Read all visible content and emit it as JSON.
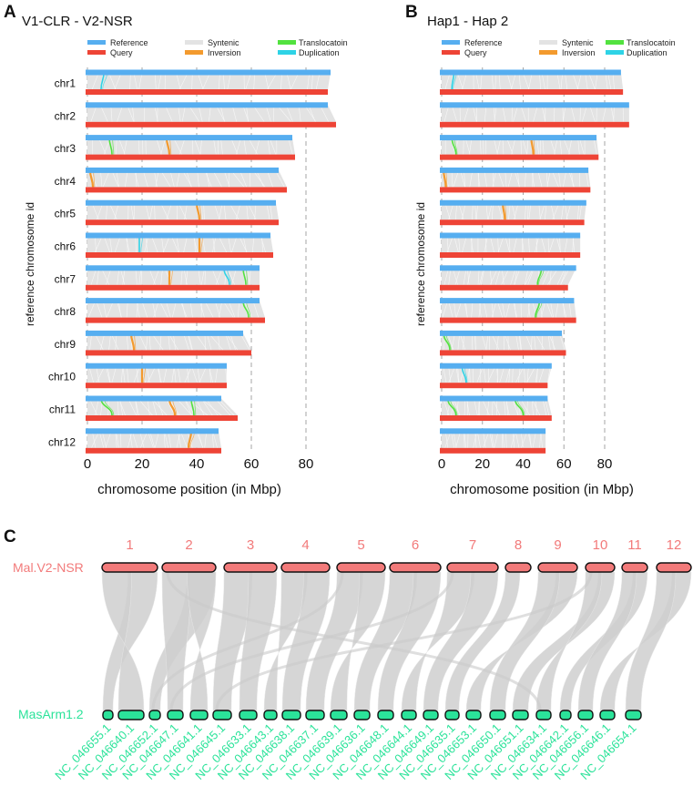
{
  "panel_letters": [
    "A",
    "B",
    "C"
  ],
  "legend": {
    "reference": "Reference",
    "query": "Query",
    "syntenic": "Syntenic",
    "inversion": "Inversion",
    "translocation": "Translocatoin",
    "duplication": "Duplication"
  },
  "colors": {
    "reference": "#56aef0",
    "query": "#ee4436",
    "syntenic": "#e3e3e3",
    "inversion": "#f39a2e",
    "translocation": "#52e23f",
    "duplication": "#2ed3e6",
    "c_top": "#f27a7a",
    "c_bottom": "#2be39a",
    "c_ribbon": "#cfcfcf"
  },
  "chart_data": [
    {
      "type": "bar",
      "panel": "A",
      "title": "V1-CLR - V2-NSR",
      "xlabel": "chromosome position (in Mbp)",
      "ylabel": "reference chromosome id",
      "xlim": [
        0,
        92
      ],
      "xticks": [
        0,
        20,
        40,
        60,
        80
      ],
      "categories": [
        "chr1",
        "chr2",
        "chr3",
        "chr4",
        "chr5",
        "chr6",
        "chr7",
        "chr8",
        "chr9",
        "chr10",
        "chr11",
        "chr12"
      ],
      "series": [
        {
          "name": "Reference",
          "values": [
            89,
            88,
            75,
            70,
            69,
            67,
            63,
            63,
            57,
            51,
            49,
            48
          ]
        },
        {
          "name": "Query",
          "values": [
            88,
            91,
            76,
            73,
            70,
            68,
            63,
            65,
            60,
            51,
            55,
            49
          ]
        }
      ],
      "events": [
        {
          "type": "duplication",
          "chr": "chr1",
          "ref": 6,
          "qry": 5
        },
        {
          "type": "inversion",
          "chr": "chr3",
          "ref": 29,
          "qry": 30
        },
        {
          "type": "translocation",
          "chr": "chr3",
          "ref": 8,
          "qry": 9
        },
        {
          "type": "inversion",
          "chr": "chr4",
          "ref": 1,
          "qry": 2
        },
        {
          "type": "inversion",
          "chr": "chr5",
          "ref": 40,
          "qry": 41
        },
        {
          "type": "duplication",
          "chr": "chr6",
          "ref": 19,
          "qry": 19
        },
        {
          "type": "inversion",
          "chr": "chr6",
          "ref": 41,
          "qry": 41
        },
        {
          "type": "inversion",
          "chr": "chr7",
          "ref": 30,
          "qry": 30
        },
        {
          "type": "duplication",
          "chr": "chr7",
          "ref": 50,
          "qry": 52
        },
        {
          "type": "translocation",
          "chr": "chr7",
          "ref": 57,
          "qry": 58
        },
        {
          "type": "translocation",
          "chr": "chr8",
          "ref": 57,
          "qry": 59
        },
        {
          "type": "inversion",
          "chr": "chr9",
          "ref": 16,
          "qry": 17
        },
        {
          "type": "inversion",
          "chr": "chr10",
          "ref": 20,
          "qry": 20
        },
        {
          "type": "translocation",
          "chr": "chr11",
          "ref": 5,
          "qry": 9
        },
        {
          "type": "inversion",
          "chr": "chr11",
          "ref": 30,
          "qry": 32
        },
        {
          "type": "translocation",
          "chr": "chr11",
          "ref": 38,
          "qry": 39
        },
        {
          "type": "inversion",
          "chr": "chr12",
          "ref": 38,
          "qry": 37
        }
      ]
    },
    {
      "type": "bar",
      "panel": "B",
      "title": "Hap1 - Hap 2",
      "xlabel": "chromosome position (in Mbp)",
      "ylabel": "reference chromosome id",
      "xlim": [
        0,
        92
      ],
      "xticks": [
        0,
        20,
        40,
        60,
        80
      ],
      "categories": [
        "chr1",
        "chr2",
        "chr3",
        "chr4",
        "chr5",
        "chr6",
        "chr7",
        "chr8",
        "chr9",
        "chr10",
        "chr11",
        "chr12"
      ],
      "series": [
        {
          "name": "Reference",
          "values": [
            88,
            92,
            76,
            72,
            71,
            68,
            66,
            65,
            59,
            54,
            52,
            51
          ]
        },
        {
          "name": "Query",
          "values": [
            89,
            92,
            77,
            73,
            70,
            68,
            62,
            66,
            61,
            52,
            54,
            51
          ]
        }
      ],
      "events": [
        {
          "type": "duplication",
          "chr": "chr1",
          "ref": 6,
          "qry": 5
        },
        {
          "type": "translocation",
          "chr": "chr3",
          "ref": 5,
          "qry": 7
        },
        {
          "type": "inversion",
          "chr": "chr3",
          "ref": 44,
          "qry": 45
        },
        {
          "type": "inversion",
          "chr": "chr4",
          "ref": 1,
          "qry": 2
        },
        {
          "type": "inversion",
          "chr": "chr5",
          "ref": 30,
          "qry": 31
        },
        {
          "type": "translocation",
          "chr": "chr7",
          "ref": 49,
          "qry": 47
        },
        {
          "type": "translocation",
          "chr": "chr8",
          "ref": 48,
          "qry": 46
        },
        {
          "type": "translocation",
          "chr": "chr9",
          "ref": 1,
          "qry": 4
        },
        {
          "type": "duplication",
          "chr": "chr10",
          "ref": 10,
          "qry": 12
        },
        {
          "type": "translocation",
          "chr": "chr11",
          "ref": 3,
          "qry": 7
        },
        {
          "type": "translocation",
          "chr": "chr11",
          "ref": 36,
          "qry": 40
        }
      ]
    },
    {
      "type": "diagram",
      "panel": "C",
      "top_label": "Mal.V2-NSR",
      "bottom_label": "MasArm1.2",
      "top_chromosomes": [
        "1",
        "2",
        "3",
        "4",
        "5",
        "6",
        "7",
        "8",
        "9",
        "10",
        "11",
        "12"
      ],
      "bottom_chromosomes": [
        "NC_046655.1",
        "NC_046640.1",
        "NC_046652.1",
        "NC_046647.1",
        "NC_046641.1",
        "NC_046645.1",
        "NC_046633.1",
        "NC_046643.1",
        "NC_046638.1",
        "NC_046637.1",
        "NC_046639.1",
        "NC_046636.1",
        "NC_046648.1",
        "NC_046644.1",
        "NC_046649.1",
        "NC_046635.1",
        "NC_046653.1",
        "NC_046650.1",
        "NC_046651.1",
        "NC_046634.1",
        "NC_046642.1",
        "NC_046656.1",
        "NC_046646.1",
        "NC_046654.1"
      ]
    }
  ]
}
